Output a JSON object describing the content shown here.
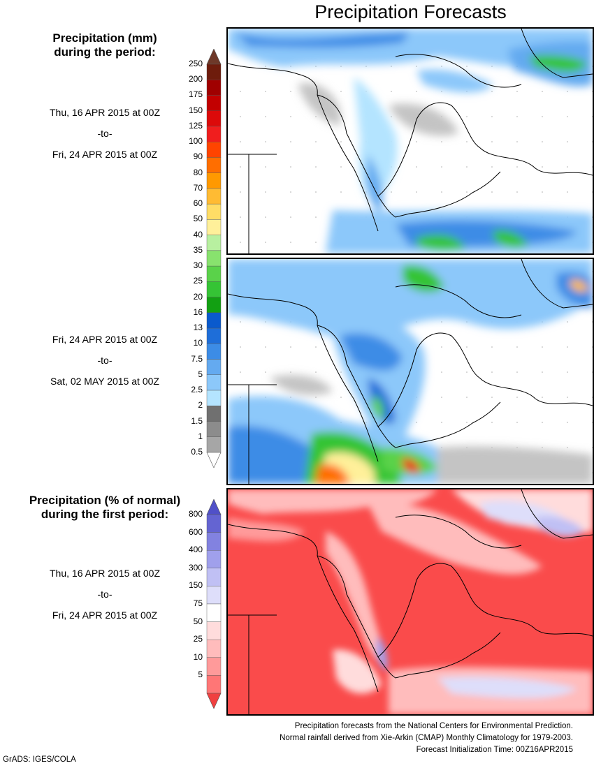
{
  "header": {
    "title": "Precipitation Forecasts"
  },
  "legend_mm": {
    "title_line1": "Precipitation (mm)",
    "title_line2": "during the period:",
    "levels": [
      "250",
      "200",
      "175",
      "150",
      "125",
      "100",
      "90",
      "80",
      "70",
      "60",
      "50",
      "40",
      "35",
      "30",
      "25",
      "20",
      "16",
      "13",
      "10",
      "7.5",
      "5",
      "2.5",
      "2",
      "1.5",
      "1",
      "0.5"
    ],
    "colors": [
      "#6e1c0c",
      "#a00000",
      "#c20000",
      "#dc0a0a",
      "#f01e1e",
      "#ff4400",
      "#ff6e00",
      "#ff9900",
      "#ffbb33",
      "#ffdd66",
      "#fff09a",
      "#b8f0a0",
      "#88e26e",
      "#5ad24a",
      "#35c435",
      "#12a012",
      "#0a5acd",
      "#1e6ed9",
      "#3c8ce6",
      "#64aaf0",
      "#8cc8fa",
      "#b4e4ff",
      "#707070",
      "#8c8c8c",
      "#a6a6a6",
      "#c4c4c4"
    ],
    "top_color": "#6e3828"
  },
  "periods": [
    {
      "start": "Thu, 16 APR 2015 at 00Z",
      "sep": "-to-",
      "end": "Fri, 24 APR 2015 at 00Z"
    },
    {
      "start": "Fri, 24 APR 2015 at 00Z",
      "sep": "-to-",
      "end": "Sat, 02 MAY 2015 at 00Z"
    }
  ],
  "legend_pct": {
    "title_line1": "Precipitation (% of normal)",
    "title_line2": "during the first period:",
    "levels": [
      "800",
      "600",
      "400",
      "300",
      "150",
      "75",
      "50",
      "25",
      "10",
      "5"
    ],
    "colors": [
      "#6464d2",
      "#8282e0",
      "#a0a0ec",
      "#c0c0f4",
      "#dedefa",
      "#ffffff",
      "#ffdcdc",
      "#ffbcbc",
      "#ff9a9a",
      "#ff7676",
      "#fa4b4b"
    ],
    "top_color": "#5050c8",
    "bottom_color": "#f04040",
    "period": {
      "start": "Thu, 16 APR 2015 at 00Z",
      "sep": "-to-",
      "end": "Fri, 24 APR 2015 at 00Z"
    }
  },
  "footer": {
    "line1": "Precipitation forecasts from the National Centers for Environmental Prediction.",
    "line2": "Normal rainfall derived from Xie-Arkin (CMAP) Monthly Climatology for 1979-2003.",
    "line3": "Forecast Initialization Time: 00Z16APR2015"
  },
  "credit": "GrADS: IGES/COLA"
}
